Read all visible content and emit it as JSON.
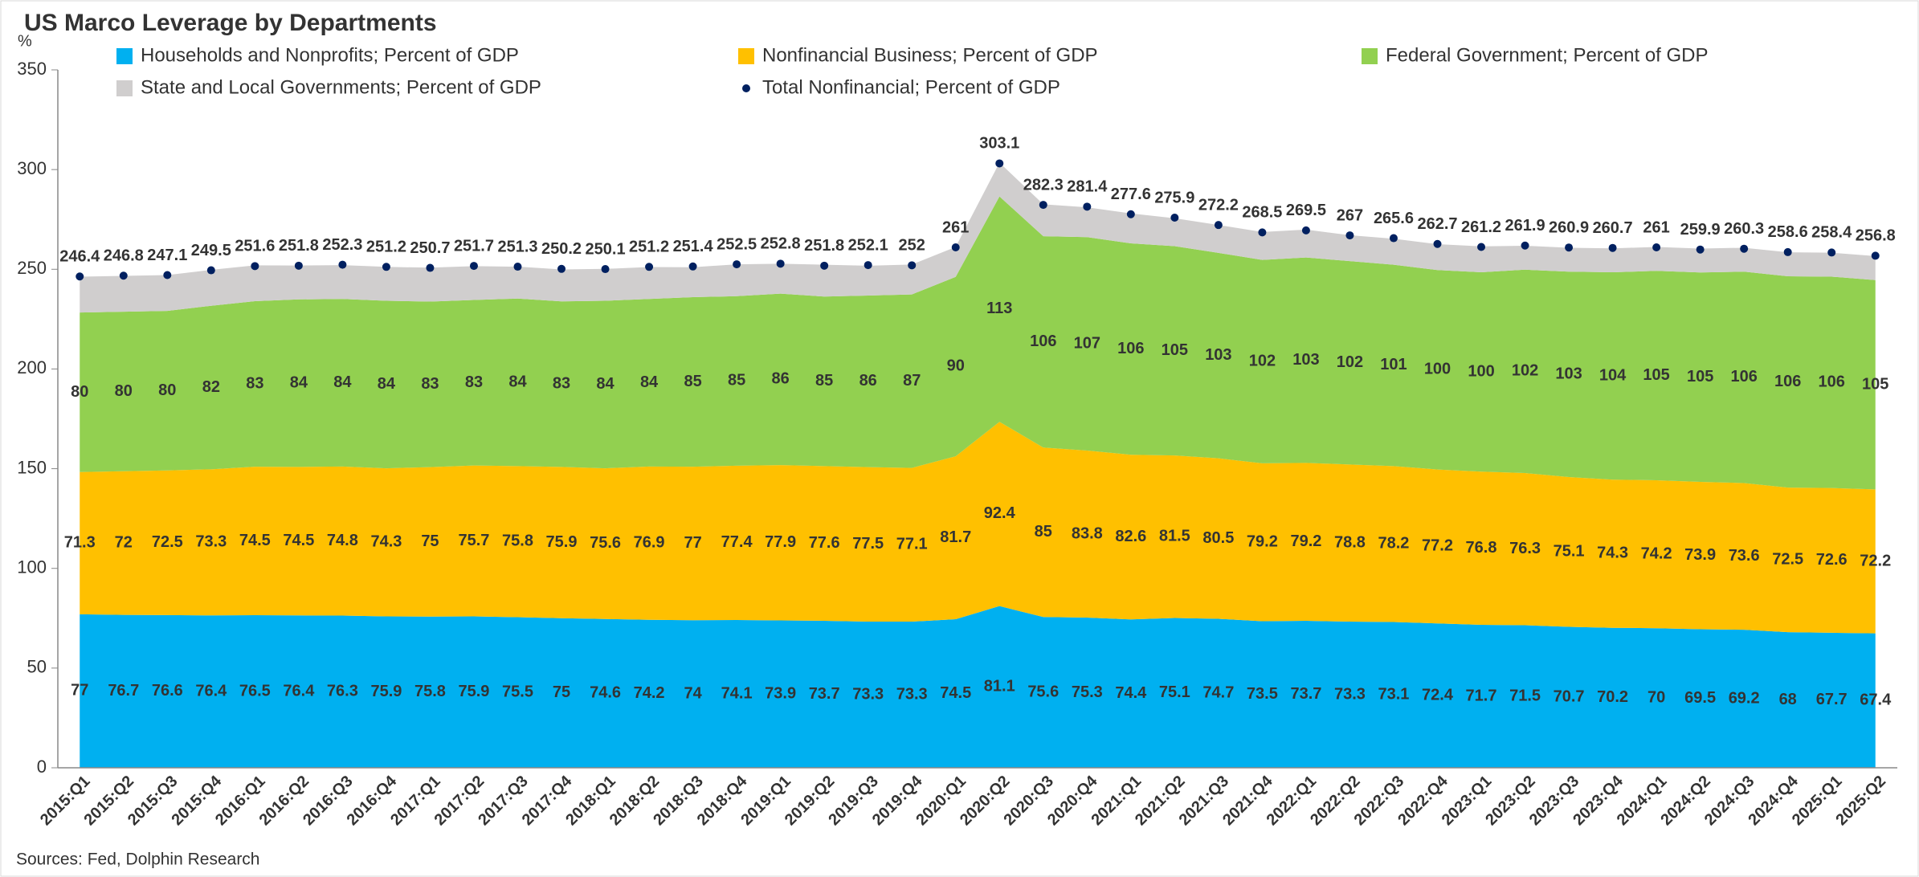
{
  "chart_data": {
    "type": "area",
    "title": "US Marco Leverage by Departments",
    "y_unit": "%",
    "source": "Sources:  Fed, Dolphin Research",
    "categories": [
      "2015:Q1",
      "2015:Q2",
      "2015:Q3",
      "2015:Q4",
      "2016:Q1",
      "2016:Q2",
      "2016:Q3",
      "2016:Q4",
      "2017:Q1",
      "2017:Q2",
      "2017:Q3",
      "2017:Q4",
      "2018:Q1",
      "2018:Q2",
      "2018:Q3",
      "2018:Q4",
      "2019:Q1",
      "2019:Q2",
      "2019:Q3",
      "2019:Q4",
      "2020:Q1",
      "2020:Q2",
      "2020:Q3",
      "2020:Q4",
      "2021:Q1",
      "2021:Q2",
      "2021:Q3",
      "2021:Q4",
      "2022:Q1",
      "2022:Q2",
      "2022:Q3",
      "2022:Q4",
      "2023:Q1",
      "2023:Q2",
      "2023:Q3",
      "2023:Q4",
      "2024:Q1",
      "2024:Q2",
      "2024:Q3",
      "2024:Q4",
      "2025:Q1",
      "2025:Q2"
    ],
    "series": [
      {
        "name": "Households and Nonprofits; Percent of GDP",
        "color": "#00b0f0",
        "type": "area",
        "labels": true,
        "values": [
          77,
          76.7,
          76.6,
          76.4,
          76.5,
          76.4,
          76.3,
          75.9,
          75.8,
          75.9,
          75.5,
          75,
          74.6,
          74.2,
          74,
          74.1,
          73.9,
          73.7,
          73.3,
          73.3,
          74.5,
          81.1,
          75.6,
          75.3,
          74.4,
          75.1,
          74.7,
          73.5,
          73.7,
          73.3,
          73.1,
          72.4,
          71.7,
          71.5,
          70.7,
          70.2,
          70,
          69.5,
          69.2,
          68,
          67.7,
          67.4
        ]
      },
      {
        "name": "Nonfinancial Business; Percent of GDP",
        "color": "#ffc000",
        "type": "area",
        "labels": true,
        "values": [
          71.3,
          72,
          72.5,
          73.3,
          74.5,
          74.5,
          74.8,
          74.3,
          75,
          75.7,
          75.8,
          75.9,
          75.6,
          76.9,
          77,
          77.4,
          77.9,
          77.6,
          77.5,
          77.1,
          81.7,
          92.4,
          85,
          83.8,
          82.6,
          81.5,
          80.5,
          79.2,
          79.2,
          78.8,
          78.2,
          77.2,
          76.8,
          76.3,
          75.1,
          74.3,
          74.2,
          73.9,
          73.6,
          72.5,
          72.6,
          72.2
        ]
      },
      {
        "name": "Federal Government; Percent of GDP",
        "color": "#92d050",
        "type": "area",
        "labels": true,
        "values": [
          80,
          80,
          80,
          82,
          83,
          84,
          84,
          84,
          83,
          83,
          84,
          83,
          84,
          84,
          85,
          85,
          86,
          85,
          86,
          87,
          90,
          113,
          106,
          107,
          106,
          105,
          103,
          102,
          103,
          102,
          101,
          100,
          100,
          102,
          103,
          104,
          105,
          105,
          106,
          106,
          106,
          105
        ]
      },
      {
        "name": "State and Local Governments; Percent of GDP",
        "color": "#d0cece",
        "type": "area",
        "labels": false,
        "values": [
          18,
          18,
          18,
          18,
          18,
          17,
          17,
          17,
          17,
          17,
          16,
          16,
          16,
          16,
          15,
          16,
          15,
          16,
          15,
          15,
          15,
          17,
          16,
          15,
          15,
          14,
          14,
          14,
          14,
          13,
          13,
          13,
          13,
          12,
          12,
          12,
          12,
          12,
          12,
          12,
          12,
          12
        ]
      },
      {
        "name": "Total Nonfinancial; Percent of GDP",
        "color": "#002060",
        "type": "scatter",
        "labels": true,
        "values": [
          246.4,
          246.8,
          247.1,
          249.5,
          251.6,
          251.8,
          252.3,
          251.2,
          250.7,
          251.7,
          251.3,
          250.2,
          250.1,
          251.2,
          251.4,
          252.5,
          252.8,
          251.8,
          252.1,
          252,
          261,
          303.1,
          282.3,
          281.4,
          277.6,
          275.9,
          272.2,
          268.5,
          269.5,
          267,
          265.6,
          262.7,
          261.2,
          261.9,
          260.9,
          260.7,
          261,
          259.9,
          260.3,
          258.6,
          258.4,
          256.8
        ]
      }
    ],
    "ylim": [
      0,
      350
    ],
    "yticks": [
      0,
      50,
      100,
      150,
      200,
      250,
      300,
      350
    ],
    "grid": false
  }
}
